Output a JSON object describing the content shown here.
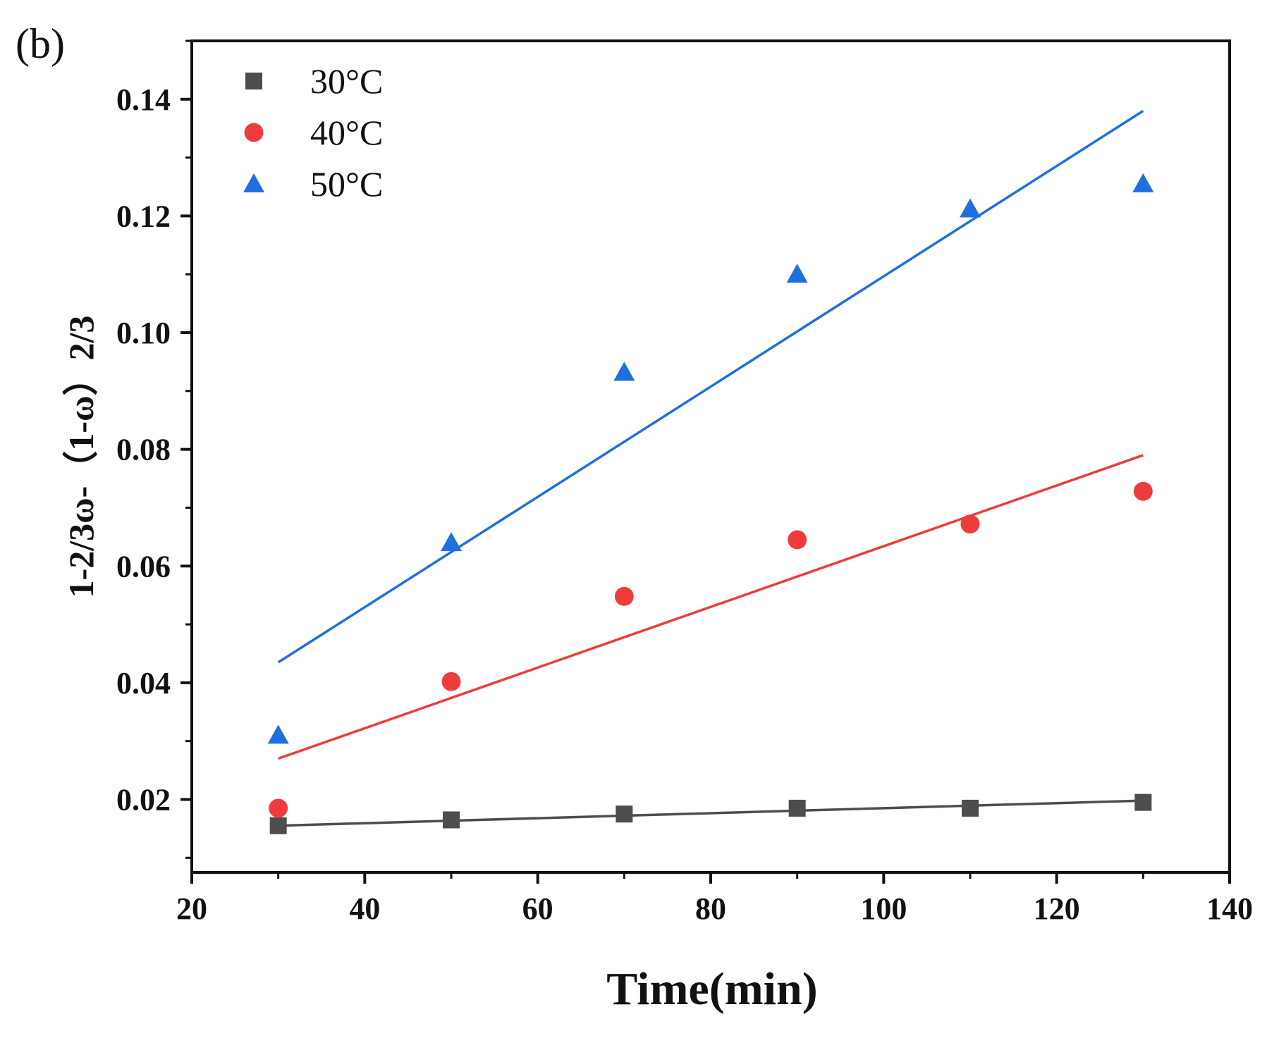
{
  "chart_data": {
    "type": "scatter",
    "panel_label": "(b)",
    "xlabel": "Time(min)",
    "ylabel": "1-2/3ω-（1-ω）2/3",
    "xlim": [
      20,
      140
    ],
    "ylim": [
      0.0075,
      0.15
    ],
    "x_ticks": [
      20,
      40,
      60,
      80,
      100,
      120,
      140
    ],
    "y_ticks": [
      0.02,
      0.04,
      0.06,
      0.08,
      0.1,
      0.12,
      0.14
    ],
    "x_tick_labels": [
      "20",
      "40",
      "60",
      "80",
      "100",
      "120",
      "140"
    ],
    "y_tick_labels": [
      "0.02",
      "0.04",
      "0.06",
      "0.08",
      "0.10",
      "0.12",
      "0.14"
    ],
    "legend_position": "top-left",
    "x": [
      30,
      50,
      70,
      90,
      110,
      130
    ],
    "series": [
      {
        "name": "30°C",
        "marker": "square",
        "color": "#4d4d4d",
        "values": [
          0.0155,
          0.0165,
          0.0175,
          0.0185,
          0.0185,
          0.0195
        ],
        "fit": {
          "x": [
            30,
            130
          ],
          "y": [
            0.0155,
            0.0198
          ]
        }
      },
      {
        "name": "40°C",
        "marker": "circle",
        "color": "#ee3b3b",
        "values": [
          0.0185,
          0.0402,
          0.0548,
          0.0645,
          0.0672,
          0.0728
        ],
        "fit": {
          "x": [
            30,
            130
          ],
          "y": [
            0.027,
            0.079
          ]
        }
      },
      {
        "name": "50°C",
        "marker": "triangle",
        "color": "#1f6fe0",
        "values": [
          0.031,
          0.064,
          0.0932,
          0.11,
          0.1212,
          0.1255
        ],
        "fit": {
          "x": [
            30,
            130
          ],
          "y": [
            0.0435,
            0.138
          ]
        }
      }
    ]
  }
}
